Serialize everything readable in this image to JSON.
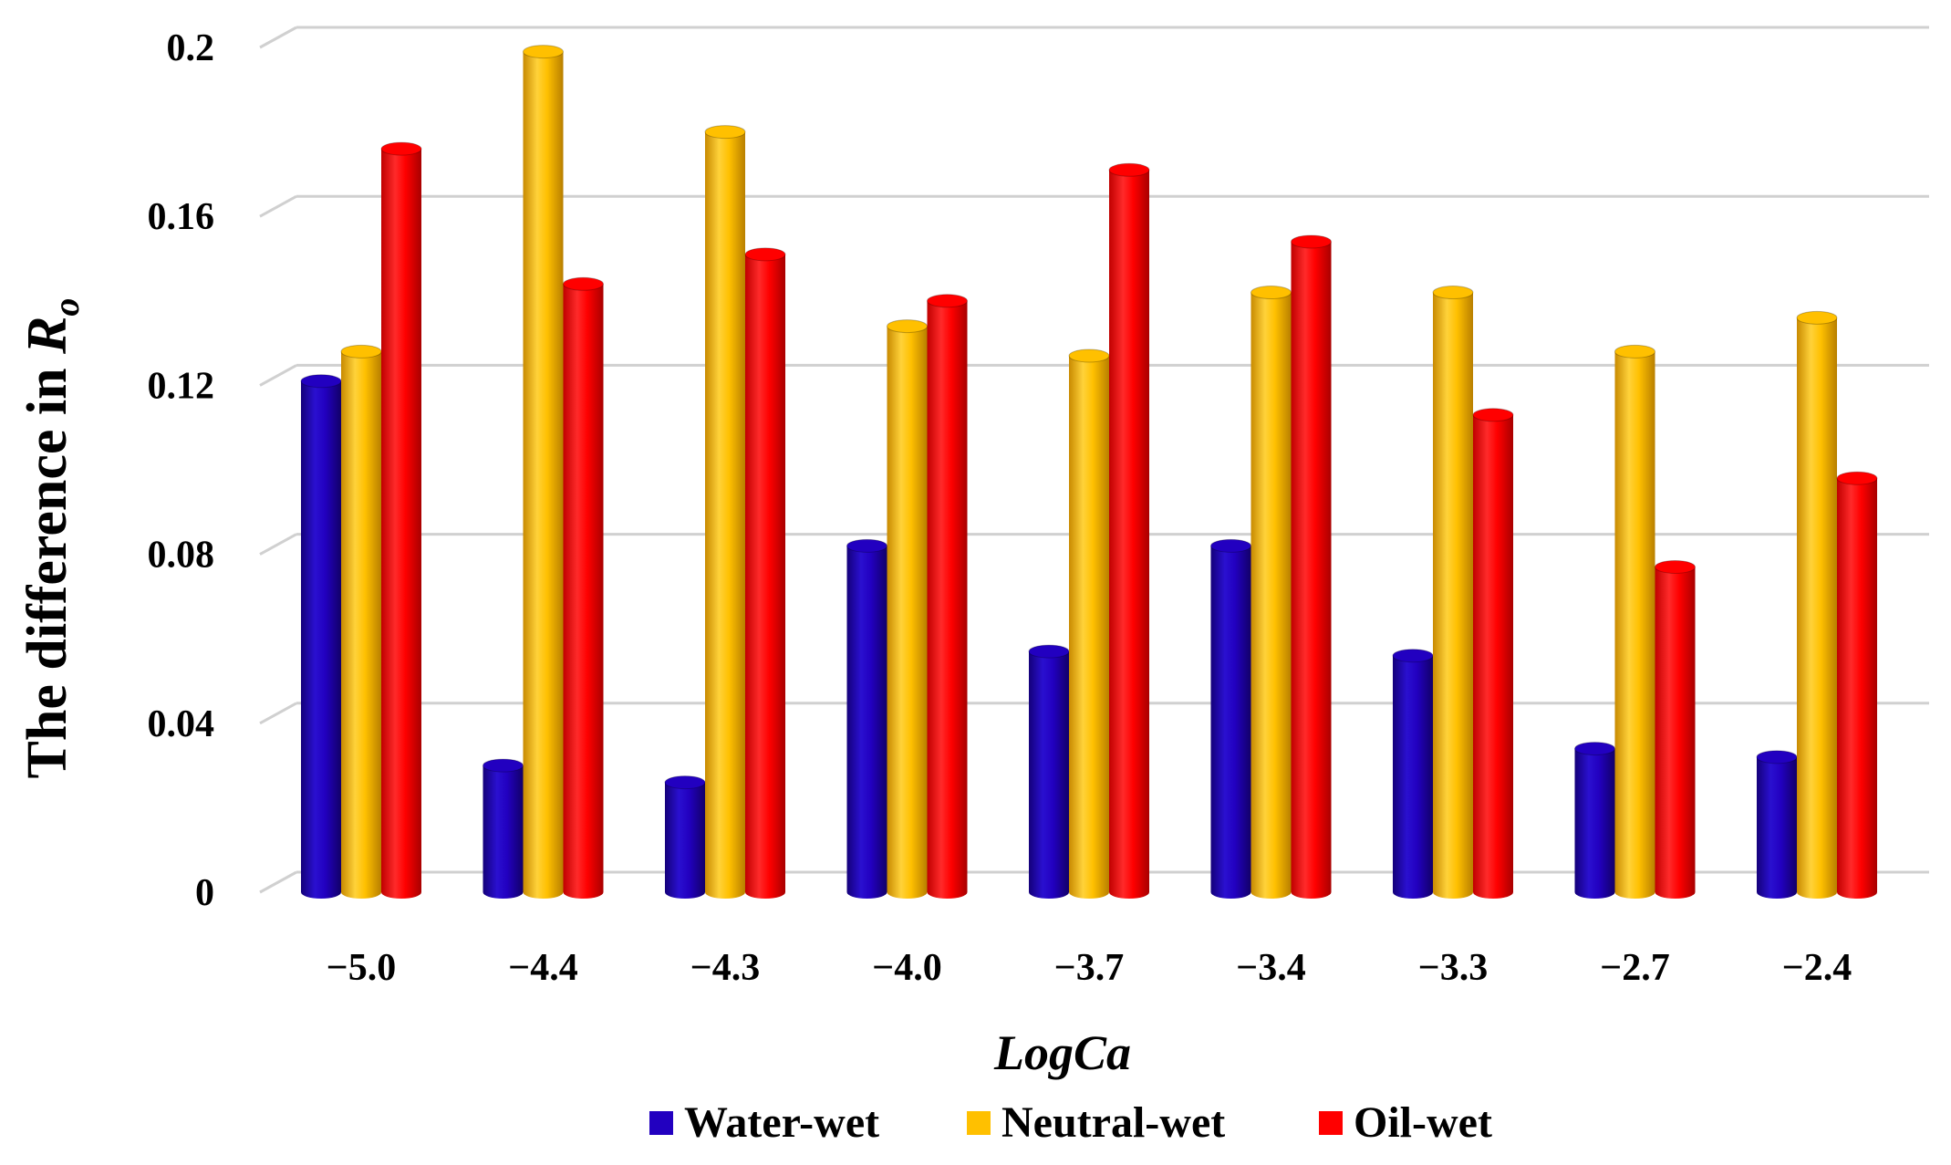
{
  "chart_data": {
    "type": "bar",
    "title": "",
    "xlabel": "LogCa",
    "ylabel_main": "The difference in ",
    "ylabel_symbol": "R",
    "ylabel_subscript": "o",
    "ylim": [
      0,
      0.2
    ],
    "yticks": [
      0,
      0.04,
      0.08,
      0.12,
      0.16,
      0.2
    ],
    "ytick_labels": [
      "0",
      "0.04",
      "0.08",
      "0.12",
      "0.16",
      "0.2"
    ],
    "categories": [
      "−5.0",
      "−4.4",
      "−4.3",
      "−4.0",
      "−3.7",
      "−3.4",
      "−3.3",
      "−2.7",
      "−2.4"
    ],
    "series": [
      {
        "name": "Water-wet",
        "color": "#2200c0",
        "values": [
          0.121,
          0.03,
          0.026,
          0.082,
          0.057,
          0.082,
          0.056,
          0.034,
          0.032
        ]
      },
      {
        "name": "Neutral-wet",
        "color": "#ffc000",
        "values": [
          0.128,
          0.199,
          0.18,
          0.134,
          0.127,
          0.142,
          0.142,
          0.128,
          0.136
        ]
      },
      {
        "name": "Oil-wet",
        "color": "#ff0000",
        "values": [
          0.176,
          0.144,
          0.151,
          0.14,
          0.171,
          0.154,
          0.113,
          0.077,
          0.098
        ]
      }
    ],
    "grid": true,
    "legend_position": "bottom"
  }
}
